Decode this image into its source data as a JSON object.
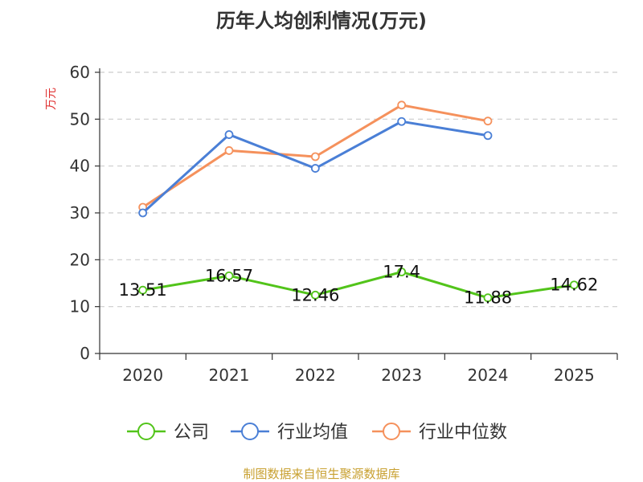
{
  "chart_data": {
    "type": "line",
    "title": "历年人均创利情况(万元)",
    "ylabel": "万元",
    "xlabel": "",
    "categories": [
      "2020",
      "2021",
      "2022",
      "2023",
      "2024",
      "2025"
    ],
    "ylim": [
      0,
      60
    ],
    "yticks": [
      0,
      10,
      20,
      30,
      40,
      50,
      60
    ],
    "grid": true,
    "legend_position": "bottom",
    "series": [
      {
        "name": "公司",
        "color": "#52c41a",
        "values": [
          13.51,
          16.57,
          12.46,
          17.4,
          11.88,
          14.62
        ],
        "labels": [
          "13.51",
          "16.57",
          "12.46",
          "17.4",
          "11.88",
          "14.62"
        ]
      },
      {
        "name": "行业均值",
        "color": "#4a7fd6",
        "values": [
          30.0,
          46.7,
          39.5,
          49.5,
          46.5,
          null
        ]
      },
      {
        "name": "行业中位数",
        "color": "#f5915c",
        "values": [
          31.2,
          43.3,
          42.0,
          53.0,
          49.6,
          null
        ]
      }
    ]
  },
  "colors": {
    "ylabel": "#e03030",
    "source": "#c8a030",
    "axis": "#333333",
    "grid": "#cccccc"
  },
  "source_text": "制图数据来自恒生聚源数据库"
}
